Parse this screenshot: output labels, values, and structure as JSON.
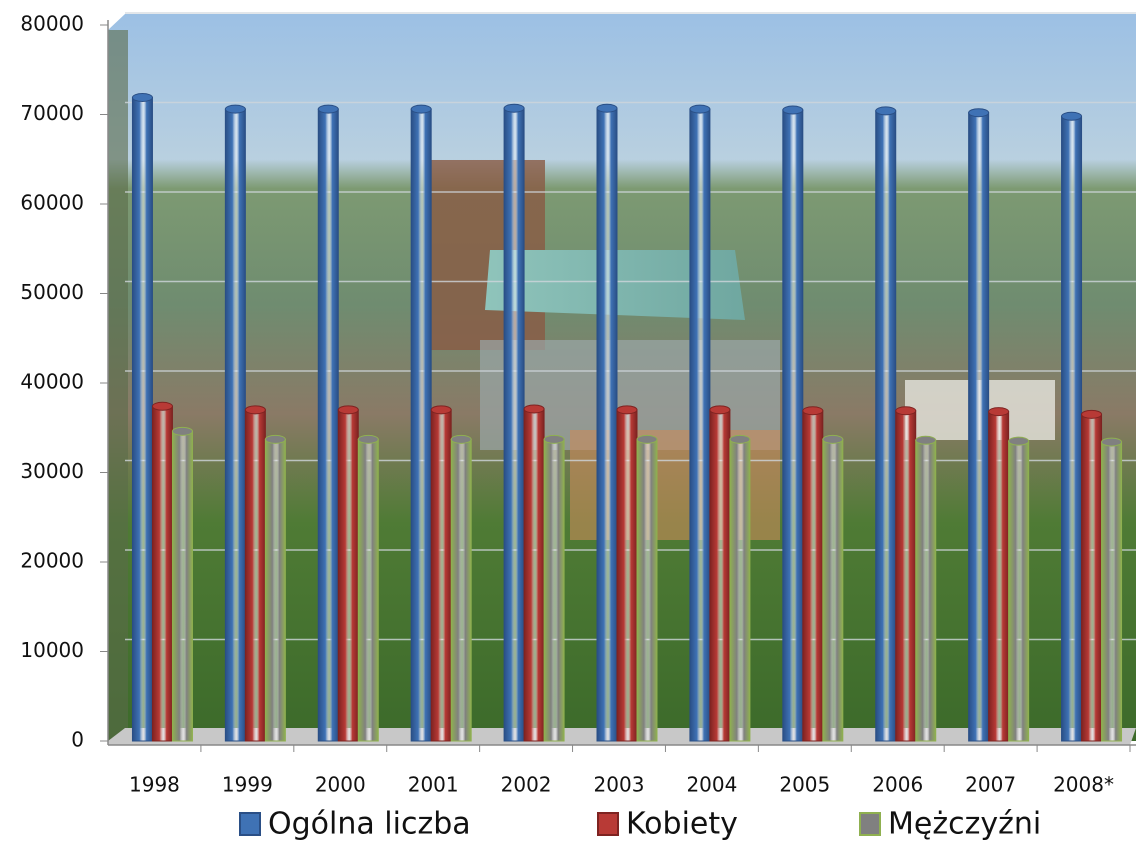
{
  "chart_data": {
    "type": "bar",
    "categories": [
      "1998",
      "1999",
      "2000",
      "2001",
      "2002",
      "2003",
      "2004",
      "2005",
      "2006",
      "2007",
      "2008*"
    ],
    "series": [
      {
        "name": "Ogólna liczba",
        "color": "#3f72b5",
        "edgecolor": "#2a4f86",
        "values": [
          71900,
          70600,
          70600,
          70600,
          70700,
          70700,
          70600,
          70500,
          70400,
          70200,
          69800
        ]
      },
      {
        "name": "Kobiety",
        "color": "#b83a36",
        "edgecolor": "#7e2321",
        "values": [
          37400,
          37000,
          37000,
          37000,
          37100,
          37000,
          37000,
          36900,
          36900,
          36800,
          36500
        ]
      },
      {
        "name": "Mężczyźni",
        "color": "#808080",
        "edgecolor": "#8fb050",
        "values": [
          34600,
          33700,
          33700,
          33700,
          33700,
          33700,
          33700,
          33700,
          33600,
          33500,
          33400
        ]
      }
    ],
    "ylim": [
      0,
      80000
    ],
    "yticks": [
      0,
      10000,
      20000,
      30000,
      40000,
      50000,
      60000,
      70000,
      80000
    ],
    "grid": true,
    "legend": "bottom"
  }
}
